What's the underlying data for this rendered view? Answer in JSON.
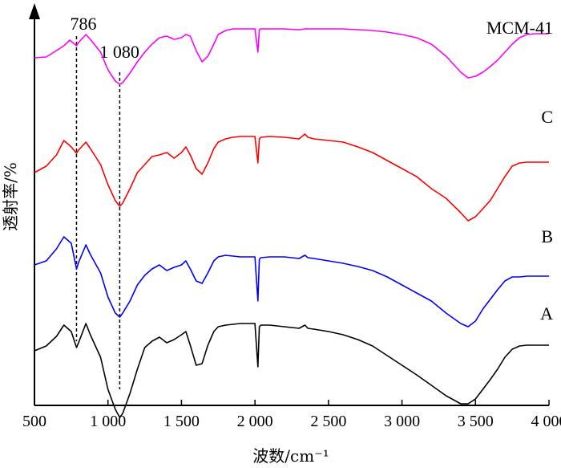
{
  "chart_data": {
    "type": "line",
    "xlabel": "波数/cm⁻¹",
    "ylabel": "透射率/%",
    "xlim": [
      500,
      4000
    ],
    "x_ticks": [
      500,
      1000,
      1500,
      2000,
      2500,
      3000,
      3500,
      4000
    ],
    "x_tick_labels": [
      "500",
      "1 000",
      "1 500",
      "2 000",
      "2 500",
      "3 000",
      "3 500",
      "4 000"
    ],
    "grid": false,
    "legend": "none",
    "annotations": [
      {
        "text": "786",
        "x": 786
      },
      {
        "text": "1 080",
        "x": 1080
      }
    ],
    "series": [
      {
        "name": "MCM-41",
        "color": "#ff00ff",
        "x": [
          500,
          580,
          650,
          700,
          740,
          786,
          800,
          850,
          880,
          950,
          1000,
          1050,
          1080,
          1100,
          1150,
          1200,
          1250,
          1300,
          1350,
          1400,
          1450,
          1500,
          1530,
          1560,
          1600,
          1640,
          1680,
          1720,
          1750,
          1800,
          1850,
          1900,
          1950,
          2000,
          2020,
          2030,
          2040,
          2100,
          2200,
          2300,
          2340,
          2360,
          2400,
          2500,
          2600,
          2700,
          2800,
          2900,
          3000,
          3100,
          3200,
          3300,
          3400,
          3450,
          3500,
          3550,
          3600,
          3650,
          3700,
          3750,
          3800,
          3850,
          3900,
          3950,
          4000
        ],
        "y": [
          37,
          36,
          28,
          22,
          15,
          22,
          18,
          8,
          14,
          30,
          52,
          66,
          70,
          68,
          56,
          42,
          30,
          20,
          12,
          10,
          14,
          12,
          8,
          10,
          28,
          42,
          35,
          20,
          8,
          3,
          1,
          1,
          1,
          1,
          30,
          2,
          1,
          1,
          1,
          2,
          1,
          1,
          1,
          1,
          1,
          2,
          3,
          5,
          8,
          12,
          20,
          35,
          55,
          62,
          60,
          55,
          48,
          40,
          30,
          20,
          12,
          8,
          7,
          7,
          7
        ]
      },
      {
        "name": "C",
        "color": "#ff0000",
        "x": [
          500,
          580,
          650,
          700,
          750,
          786,
          800,
          850,
          880,
          950,
          1000,
          1050,
          1080,
          1100,
          1150,
          1200,
          1250,
          1300,
          1350,
          1400,
          1450,
          1500,
          1530,
          1560,
          1600,
          1640,
          1680,
          1720,
          1750,
          1800,
          1850,
          1900,
          1950,
          2000,
          2020,
          2030,
          2040,
          2100,
          2200,
          2300,
          2340,
          2360,
          2400,
          2500,
          2600,
          2700,
          2800,
          2900,
          3000,
          3100,
          3200,
          3300,
          3400,
          3450,
          3500,
          3550,
          3600,
          3650,
          3700,
          3750,
          3800,
          3850,
          3900,
          3950,
          4000
        ],
        "y": [
          180,
          172,
          158,
          140,
          148,
          156,
          152,
          142,
          150,
          170,
          195,
          215,
          222,
          218,
          200,
          180,
          170,
          160,
          158,
          155,
          162,
          155,
          148,
          158,
          175,
          182,
          168,
          150,
          142,
          138,
          136,
          135,
          135,
          135,
          168,
          138,
          136,
          135,
          136,
          138,
          132,
          136,
          138,
          140,
          142,
          148,
          155,
          165,
          175,
          185,
          200,
          212,
          230,
          240,
          235,
          225,
          215,
          200,
          185,
          172,
          168,
          167,
          167,
          167,
          167
        ]
      },
      {
        "name": "B",
        "color": "#0000ff",
        "x": [
          500,
          580,
          650,
          700,
          750,
          786,
          800,
          850,
          880,
          950,
          1000,
          1050,
          1080,
          1100,
          1150,
          1200,
          1250,
          1300,
          1350,
          1400,
          1450,
          1500,
          1530,
          1560,
          1600,
          1640,
          1680,
          1720,
          1750,
          1800,
          1850,
          1900,
          1950,
          2000,
          2020,
          2030,
          2040,
          2100,
          2200,
          2300,
          2340,
          2360,
          2400,
          2500,
          2600,
          2700,
          2800,
          2900,
          3000,
          3100,
          3200,
          3300,
          3400,
          3450,
          3500,
          3550,
          3600,
          3650,
          3700,
          3750,
          3800,
          3850,
          3900,
          3950,
          4000
        ],
        "y": [
          295,
          290,
          275,
          260,
          268,
          300,
          292,
          270,
          282,
          305,
          335,
          355,
          360,
          355,
          340,
          320,
          308,
          300,
          295,
          302,
          298,
          295,
          290,
          300,
          315,
          318,
          305,
          290,
          285,
          283,
          284,
          285,
          285,
          285,
          340,
          288,
          286,
          285,
          285,
          287,
          283,
          286,
          287,
          290,
          293,
          297,
          302,
          310,
          320,
          330,
          340,
          355,
          368,
          372,
          365,
          350,
          338,
          326,
          315,
          310,
          310,
          309,
          309,
          309,
          309
        ]
      },
      {
        "name": "A",
        "color": "#000000",
        "x": [
          500,
          580,
          650,
          700,
          750,
          786,
          800,
          850,
          880,
          950,
          1000,
          1050,
          1080,
          1100,
          1150,
          1200,
          1250,
          1300,
          1350,
          1400,
          1450,
          1500,
          1530,
          1560,
          1600,
          1640,
          1680,
          1720,
          1750,
          1800,
          1850,
          1900,
          1950,
          2000,
          2020,
          2030,
          2040,
          2100,
          2200,
          2300,
          2340,
          2360,
          2400,
          2500,
          2600,
          2700,
          2800,
          2900,
          3000,
          3100,
          3200,
          3300,
          3400,
          3450,
          3500,
          3550,
          3600,
          3650,
          3700,
          3750,
          3800,
          3850,
          3900,
          3950,
          4000
        ],
        "y": [
          402,
          396,
          384,
          370,
          378,
          398,
          392,
          368,
          382,
          410,
          450,
          475,
          485,
          480,
          455,
          425,
          398,
          390,
          385,
          392,
          388,
          382,
          378,
          395,
          420,
          418,
          395,
          378,
          372,
          370,
          369,
          368,
          368,
          368,
          422,
          372,
          370,
          370,
          372,
          374,
          370,
          374,
          375,
          378,
          382,
          388,
          396,
          408,
          420,
          432,
          445,
          458,
          468,
          468,
          462,
          450,
          438,
          425,
          410,
          400,
          396,
          395,
          395,
          395,
          395
        ]
      }
    ]
  }
}
